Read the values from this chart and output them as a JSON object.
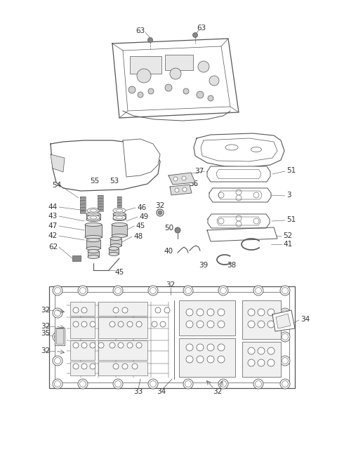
{
  "background_color": "#ffffff",
  "line_color": "#555555",
  "text_color": "#333333",
  "font_size": 7.5,
  "figsize": [
    4.8,
    6.54
  ],
  "dpi": 100
}
